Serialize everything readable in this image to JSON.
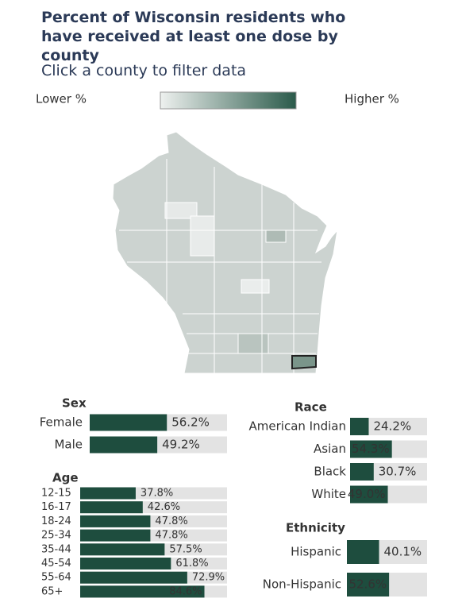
{
  "title": "Percent of Wisconsin residents who have received at least one dose by county",
  "instruction": "Click a county to filter data",
  "legend": {
    "low": "Lower %",
    "high": "Higher %"
  },
  "chart_data": [
    {
      "type": "bar",
      "title": "Sex",
      "categories": [
        "Female",
        "Male"
      ],
      "values": [
        56.2,
        49.2
      ],
      "value_labels": [
        "56.2%",
        "49.2%"
      ],
      "color": "#1e4d3e",
      "track_color": "#e3e3e3",
      "xlim": [
        0,
        100
      ]
    },
    {
      "type": "bar",
      "title": "Age",
      "categories": [
        "12-15",
        "16-17",
        "18-24",
        "25-34",
        "35-44",
        "45-54",
        "55-64",
        "65+"
      ],
      "values": [
        37.8,
        42.6,
        47.8,
        47.8,
        57.5,
        61.8,
        72.9,
        84.6
      ],
      "value_labels": [
        "37.8%",
        "42.6%",
        "47.8%",
        "47.8%",
        "57.5%",
        "61.8%",
        "72.9%",
        "84.6%"
      ],
      "color": "#1e4d3e",
      "track_color": "#e3e3e3",
      "xlim": [
        0,
        100
      ]
    },
    {
      "type": "bar",
      "title": "Race",
      "categories": [
        "American Indian",
        "Asian",
        "Black",
        "White"
      ],
      "values": [
        24.2,
        54.3,
        30.7,
        49.0
      ],
      "value_labels": [
        "24.2%",
        "54.3%",
        "30.7%",
        "49.0%"
      ],
      "color": "#1e4d3e",
      "track_color": "#e3e3e3",
      "xlim": [
        0,
        100
      ]
    },
    {
      "type": "bar",
      "title": "Ethnicity",
      "categories": [
        "Hispanic",
        "Non-Hispanic"
      ],
      "values": [
        40.1,
        52.6
      ],
      "value_labels": [
        "40.1%",
        "52.6%"
      ],
      "color": "#1e4d3e",
      "track_color": "#e3e3e3",
      "xlim": [
        0,
        100
      ]
    }
  ]
}
